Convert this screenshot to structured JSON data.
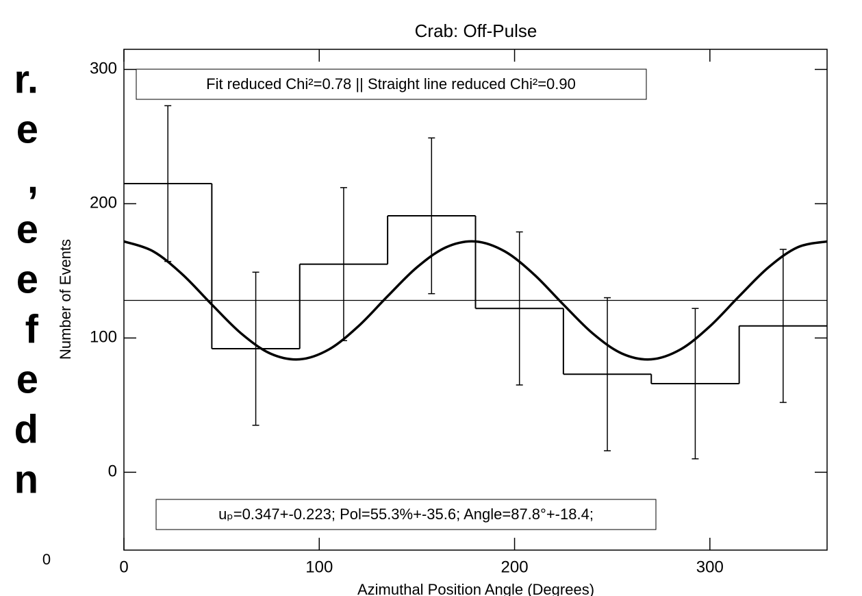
{
  "side_text": [
    "r.",
    "e",
    ",",
    "e",
    "e",
    "f",
    "e",
    "d",
    "n"
  ],
  "corner_text": "0",
  "chart_data": {
    "type": "histogram",
    "title": "Crab: Off-Pulse",
    "xlabel": "Azimuthal Position Angle (Degrees)",
    "ylabel": "Number of Events",
    "bins": [
      0,
      45,
      90,
      135,
      180,
      225,
      270,
      315,
      360
    ],
    "values": [
      215,
      92,
      155,
      191,
      122,
      73,
      66,
      109
    ],
    "errors": [
      58,
      57,
      57,
      58,
      57,
      57,
      56,
      57
    ],
    "color": "#000000",
    "lines": [
      {
        "x": [
          0,
          15,
          30,
          45,
          60,
          75,
          90,
          105,
          120,
          135,
          150,
          165,
          180,
          195,
          210,
          225,
          240,
          255,
          270,
          285,
          300,
          315,
          330,
          345,
          360
        ],
        "values": [
          171.9,
          164.5,
          147.3,
          124.9,
          103.4,
          88.4,
          84.1,
          91.5,
          108.7,
          131.1,
          152.6,
          167.6,
          171.9,
          164.5,
          147.3,
          124.9,
          103.4,
          88.4,
          84.1,
          91.5,
          108.7,
          131.1,
          152.6,
          167.6,
          171.9
        ],
        "color": "#000000",
        "width": 3.5
      },
      {
        "x": [
          0,
          360
        ],
        "values": [
          128,
          128
        ],
        "color": "#000000",
        "width": 1.2
      }
    ],
    "annotations": [
      "Fit reduced Chi²=0.78 || Straight line reduced Chi²=0.90",
      "uₚ=0.347+-0.223; Pol=55.3%+-35.6; Angle=87.8°+-18.4;"
    ],
    "xlim": [
      0,
      360
    ],
    "xticks": [
      0,
      100,
      200,
      300
    ],
    "ylim": [
      -58,
      315
    ],
    "yticks": [
      0,
      100,
      200,
      300
    ]
  }
}
